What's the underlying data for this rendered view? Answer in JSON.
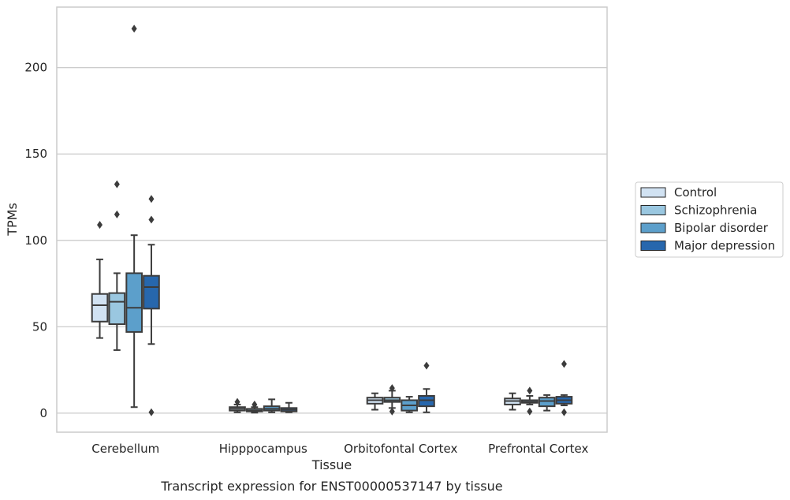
{
  "chart_data": {
    "type": "boxplot",
    "title": "Transcript expression for ENST00000537147 by tissue",
    "xlabel": "Tissue",
    "ylabel": "TPMs",
    "ylim": [
      -11,
      235
    ],
    "yticks": [
      0,
      50,
      100,
      150,
      200
    ],
    "grid": "horizontal",
    "legend_position": "right",
    "categories": [
      "Cerebellum",
      "Hipppocampus",
      "Orbitofontal Cortex",
      "Prefrontal Cortex"
    ],
    "series": [
      {
        "name": "Control",
        "color": "#d1e2f2",
        "boxes": [
          {
            "whisker_low": 43.5,
            "q1": 53,
            "median": 62.5,
            "q3": 69,
            "whisker_high": 89,
            "outliers": [
              109
            ]
          },
          {
            "whisker_low": 0.5,
            "q1": 1.5,
            "median": 2.5,
            "q3": 3.5,
            "whisker_high": 5,
            "outliers": [
              6.5
            ]
          },
          {
            "whisker_low": 2,
            "q1": 5.5,
            "median": 7.5,
            "q3": 9,
            "whisker_high": 11.5,
            "outliers": []
          },
          {
            "whisker_low": 2,
            "q1": 5,
            "median": 7,
            "q3": 8.5,
            "whisker_high": 11.5,
            "outliers": []
          }
        ]
      },
      {
        "name": "Schizophrenia",
        "color": "#9ac7e0",
        "boxes": [
          {
            "whisker_low": 36.5,
            "q1": 51.5,
            "median": 64.5,
            "q3": 69.5,
            "whisker_high": 81,
            "outliers": [
              115,
              132.5
            ]
          },
          {
            "whisker_low": 0.3,
            "q1": 1,
            "median": 1.5,
            "q3": 2.5,
            "whisker_high": 3.5,
            "outliers": [
              5
            ]
          },
          {
            "whisker_low": 3,
            "q1": 6.5,
            "median": 7.5,
            "q3": 9,
            "whisker_high": 13,
            "outliers": [
              1,
              14.5
            ]
          },
          {
            "whisker_low": 5,
            "q1": 6,
            "median": 6.5,
            "q3": 7.5,
            "whisker_high": 10,
            "outliers": [
              1,
              13
            ]
          }
        ]
      },
      {
        "name": "Bipolar disorder",
        "color": "#5c9fcb",
        "boxes": [
          {
            "whisker_low": 3.5,
            "q1": 47,
            "median": 61,
            "q3": 81,
            "whisker_high": 103,
            "outliers": [
              222.5
            ]
          },
          {
            "whisker_low": 0.5,
            "q1": 1.5,
            "median": 2.5,
            "q3": 4,
            "whisker_high": 8,
            "outliers": []
          },
          {
            "whisker_low": 0.5,
            "q1": 1.5,
            "median": 4.5,
            "q3": 7.5,
            "whisker_high": 9.5,
            "outliers": []
          },
          {
            "whisker_low": 1.5,
            "q1": 4,
            "median": 7,
            "q3": 9,
            "whisker_high": 10.5,
            "outliers": []
          }
        ]
      },
      {
        "name": "Major depression",
        "color": "#2767ad",
        "boxes": [
          {
            "whisker_low": 40,
            "q1": 60.5,
            "median": 73,
            "q3": 79.5,
            "whisker_high": 97.5,
            "outliers": [
              0.5,
              112,
              124
            ]
          },
          {
            "whisker_low": 0.5,
            "q1": 1,
            "median": 2,
            "q3": 3,
            "whisker_high": 6,
            "outliers": []
          },
          {
            "whisker_low": 0.5,
            "q1": 4,
            "median": 7.5,
            "q3": 10,
            "whisker_high": 14,
            "outliers": [
              27.5
            ]
          },
          {
            "whisker_low": 4.5,
            "q1": 5.5,
            "median": 7.5,
            "q3": 9.5,
            "whisker_high": 10.5,
            "outliers": [
              0.5,
              28.5
            ]
          }
        ]
      }
    ]
  }
}
